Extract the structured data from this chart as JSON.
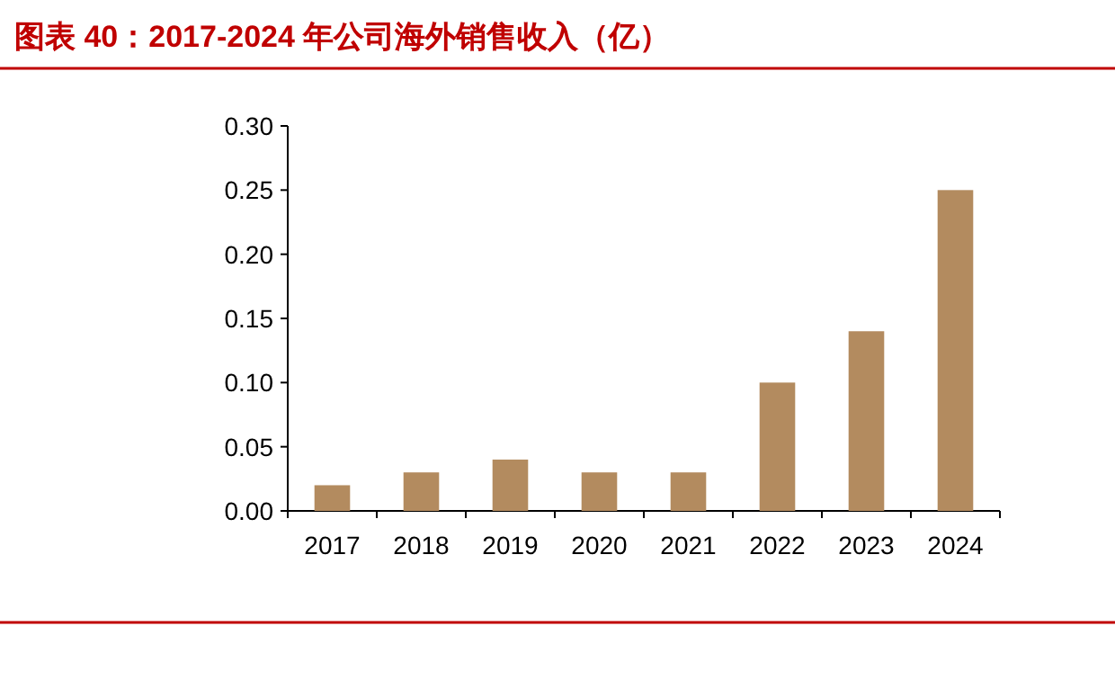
{
  "chart_data": {
    "type": "bar",
    "title": "图表 40：2017-2024 年公司海外销售收入（亿）",
    "categories": [
      "2017",
      "2018",
      "2019",
      "2020",
      "2021",
      "2022",
      "2023",
      "2024"
    ],
    "values": [
      0.02,
      0.03,
      0.04,
      0.03,
      0.03,
      0.1,
      0.14,
      0.25
    ],
    "color": "#b38b5f",
    "ylim": [
      0,
      0.3
    ],
    "yticks": [
      {
        "value": 0,
        "label": "0.00"
      },
      {
        "value": 0.05,
        "label": "0.05"
      },
      {
        "value": 0.1,
        "label": "0.10"
      },
      {
        "value": 0.15,
        "label": "0.15"
      },
      {
        "value": 0.2,
        "label": "0.20"
      },
      {
        "value": 0.25,
        "label": "0.25"
      },
      {
        "value": 0.3,
        "label": "0.30"
      }
    ]
  }
}
